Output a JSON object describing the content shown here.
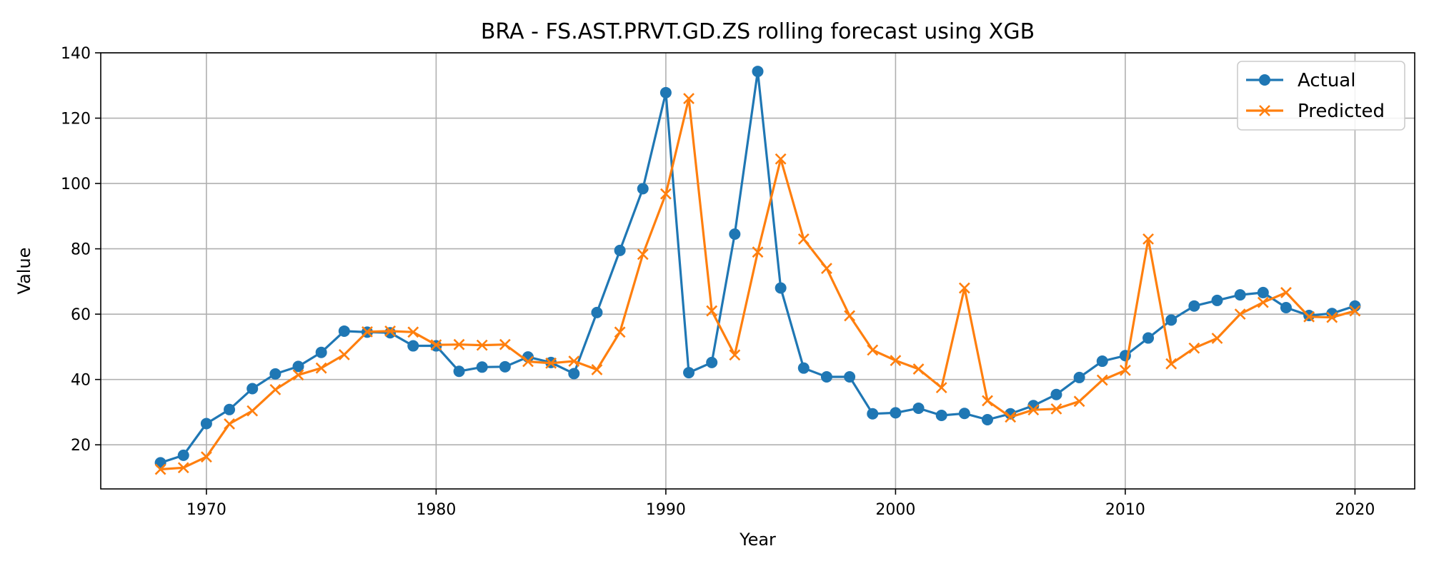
{
  "chart_data": {
    "type": "line",
    "title": "BRA - FS.AST.PRVT.GD.ZS rolling forecast using XGB",
    "xlabel": "Year",
    "ylabel": "Value",
    "xlim": [
      1965.4,
      2022.6
    ],
    "ylim": [
      6.5,
      140
    ],
    "xticks": [
      1970,
      1980,
      1990,
      2000,
      2010,
      2020
    ],
    "yticks": [
      20,
      40,
      60,
      80,
      100,
      120,
      140
    ],
    "grid": true,
    "legend_position": "top-right",
    "x": [
      1968,
      1969,
      1970,
      1971,
      1972,
      1973,
      1974,
      1975,
      1976,
      1977,
      1978,
      1979,
      1980,
      1981,
      1982,
      1983,
      1984,
      1985,
      1986,
      1987,
      1988,
      1989,
      1990,
      1991,
      1992,
      1993,
      1994,
      1995,
      1996,
      1997,
      1998,
      1999,
      2000,
      2001,
      2002,
      2003,
      2004,
      2005,
      2006,
      2007,
      2008,
      2009,
      2010,
      2011,
      2012,
      2013,
      2014,
      2015,
      2016,
      2017,
      2018,
      2019,
      2020
    ],
    "series": [
      {
        "name": "Actual",
        "color": "#1f77b4",
        "marker": "circle",
        "values": [
          14.5,
          16.8,
          26.5,
          30.8,
          37.2,
          41.7,
          44.0,
          48.3,
          54.8,
          54.5,
          54.3,
          50.3,
          50.3,
          42.5,
          43.8,
          43.9,
          46.9,
          45.2,
          41.8,
          60.5,
          79.5,
          98.4,
          127.8,
          42.1,
          45.2,
          84.5,
          134.3,
          68.0,
          43.5,
          40.8,
          40.8,
          29.5,
          29.8,
          31.2,
          29.0,
          29.6,
          27.7,
          29.5,
          32.0,
          35.4,
          40.6,
          45.6,
          47.3,
          52.7,
          58.2,
          62.5,
          64.2,
          65.9,
          66.6,
          62.0,
          59.6,
          60.2,
          62.5
        ]
      },
      {
        "name": "Predicted",
        "color": "#ff7f0e",
        "marker": "x",
        "values": [
          12.5,
          13.0,
          16.3,
          26.4,
          30.4,
          36.9,
          41.4,
          43.5,
          47.6,
          54.6,
          54.8,
          54.5,
          50.6,
          50.7,
          50.5,
          50.7,
          45.5,
          45.0,
          45.6,
          43.0,
          54.5,
          78.3,
          96.8,
          126.0,
          61.0,
          47.5,
          79.0,
          107.5,
          83.0,
          74.0,
          59.5,
          49.0,
          45.8,
          43.2,
          37.5,
          68.0,
          33.5,
          28.5,
          30.7,
          31.0,
          33.3,
          39.8,
          42.8,
          83.0,
          44.8,
          49.6,
          52.6,
          60.0,
          63.6,
          66.6,
          59.2,
          59.0,
          61.0
        ]
      }
    ]
  }
}
